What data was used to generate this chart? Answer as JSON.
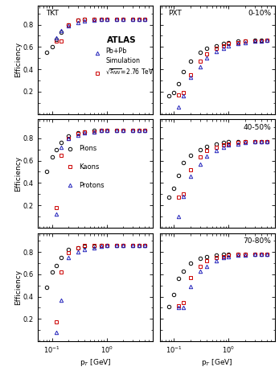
{
  "pT_pion": [
    0.08,
    0.1,
    0.12,
    0.15,
    0.2,
    0.3,
    0.4,
    0.6,
    0.8,
    1.0,
    1.5,
    2.0,
    3.0,
    4.0,
    5.0
  ],
  "pT_kaon": [
    0.12,
    0.15,
    0.2,
    0.3,
    0.4,
    0.6,
    0.8,
    1.0,
    1.5,
    2.0,
    3.0,
    4.0,
    5.0
  ],
  "pT_proton": [
    0.12,
    0.15,
    0.2,
    0.3,
    0.4,
    0.6,
    0.8,
    1.0,
    1.5,
    2.0,
    3.0,
    4.0,
    5.0
  ],
  "TKT_pion_0_10": [
    0.55,
    0.6,
    0.67,
    0.73,
    0.8,
    0.84,
    0.85,
    0.85,
    0.85,
    0.85,
    0.85,
    0.85,
    0.85,
    0.85,
    0.85
  ],
  "TKT_kaon_0_10": [
    0.65,
    0.65,
    0.8,
    0.84,
    0.85,
    0.85,
    0.85,
    0.85,
    0.85,
    0.85,
    0.85,
    0.85,
    0.85
  ],
  "TKT_proton_0_10": [
    0.68,
    0.75,
    0.79,
    0.82,
    0.83,
    0.84,
    0.85,
    0.85,
    0.85,
    0.85,
    0.85,
    0.85,
    0.85
  ],
  "TKT_pion_40_50": [
    0.5,
    0.63,
    0.7,
    0.76,
    0.82,
    0.85,
    0.86,
    0.87,
    0.87,
    0.87,
    0.87,
    0.87,
    0.87,
    0.87,
    0.87
  ],
  "TKT_kaon_40_50": [
    0.18,
    0.65,
    0.8,
    0.84,
    0.86,
    0.86,
    0.87,
    0.87,
    0.87,
    0.87,
    0.87,
    0.87,
    0.87
  ],
  "TKT_proton_40_50": [
    0.12,
    0.72,
    0.8,
    0.83,
    0.85,
    0.86,
    0.87,
    0.87,
    0.87,
    0.87,
    0.87,
    0.87,
    0.87
  ],
  "TKT_pion_70_80": [
    0.48,
    0.62,
    0.68,
    0.75,
    0.82,
    0.84,
    0.85,
    0.85,
    0.86,
    0.86,
    0.86,
    0.86,
    0.86,
    0.86,
    0.86
  ],
  "TKT_kaon_70_80": [
    0.17,
    0.62,
    0.79,
    0.84,
    0.86,
    0.86,
    0.86,
    0.86,
    0.86,
    0.86,
    0.86,
    0.86,
    0.86
  ],
  "TKT_proton_70_80": [
    0.08,
    0.37,
    0.75,
    0.8,
    0.82,
    0.84,
    0.85,
    0.86,
    0.86,
    0.86,
    0.86,
    0.86,
    0.86
  ],
  "PXT_pion_0_10": [
    0.16,
    0.19,
    0.27,
    0.38,
    0.47,
    0.55,
    0.59,
    0.61,
    0.63,
    0.64,
    0.65,
    0.65,
    0.66,
    0.66,
    0.66
  ],
  "PXT_kaon_0_10": [
    0.17,
    0.19,
    0.35,
    0.47,
    0.54,
    0.59,
    0.61,
    0.63,
    0.64,
    0.65,
    0.65,
    0.65,
    0.66
  ],
  "PXT_proton_0_10": [
    0.06,
    0.16,
    0.33,
    0.42,
    0.5,
    0.56,
    0.59,
    0.61,
    0.63,
    0.64,
    0.65,
    0.65,
    0.66
  ],
  "PXT_pion_40_50": [
    0.27,
    0.35,
    0.47,
    0.58,
    0.65,
    0.7,
    0.73,
    0.75,
    0.76,
    0.77,
    0.77,
    0.77,
    0.77,
    0.77,
    0.77
  ],
  "PXT_kaon_40_50": [
    0.27,
    0.3,
    0.52,
    0.63,
    0.69,
    0.72,
    0.74,
    0.75,
    0.76,
    0.77,
    0.77,
    0.77,
    0.77
  ],
  "PXT_proton_40_50": [
    0.1,
    0.28,
    0.46,
    0.57,
    0.64,
    0.69,
    0.72,
    0.74,
    0.75,
    0.76,
    0.77,
    0.77,
    0.77
  ],
  "PXT_pion_70_80": [
    0.31,
    0.42,
    0.56,
    0.63,
    0.7,
    0.74,
    0.76,
    0.77,
    0.78,
    0.78,
    0.78,
    0.78,
    0.78,
    0.78,
    0.78
  ],
  "PXT_kaon_70_80": [
    0.32,
    0.35,
    0.57,
    0.67,
    0.72,
    0.75,
    0.76,
    0.77,
    0.78,
    0.78,
    0.78,
    0.78,
    0.78
  ],
  "PXT_proton_70_80": [
    0.3,
    0.3,
    0.49,
    0.63,
    0.67,
    0.72,
    0.75,
    0.76,
    0.77,
    0.77,
    0.78,
    0.78,
    0.78
  ],
  "color_pion": "#000000",
  "color_kaon": "#cc0000",
  "color_proton": "#2222bb",
  "TKT_label": "TKT",
  "PXT_label": "PXT",
  "centrality_labels": [
    "0-10%",
    "40-50%",
    "70-80%"
  ],
  "ylabel": "Efficiency",
  "xlabel_left": "p$_T$ [GeV]",
  "xlabel_right": "p$_T$ [GeV]",
  "atlas_text": "ATLAS",
  "legend2_pion": "Pions",
  "legend2_kaon": "Kaons",
  "legend2_proton": "Protons",
  "ylim": [
    0.0,
    0.97
  ],
  "xlim": [
    0.055,
    7.0
  ],
  "yticks": [
    0.2,
    0.4,
    0.6,
    0.8
  ]
}
